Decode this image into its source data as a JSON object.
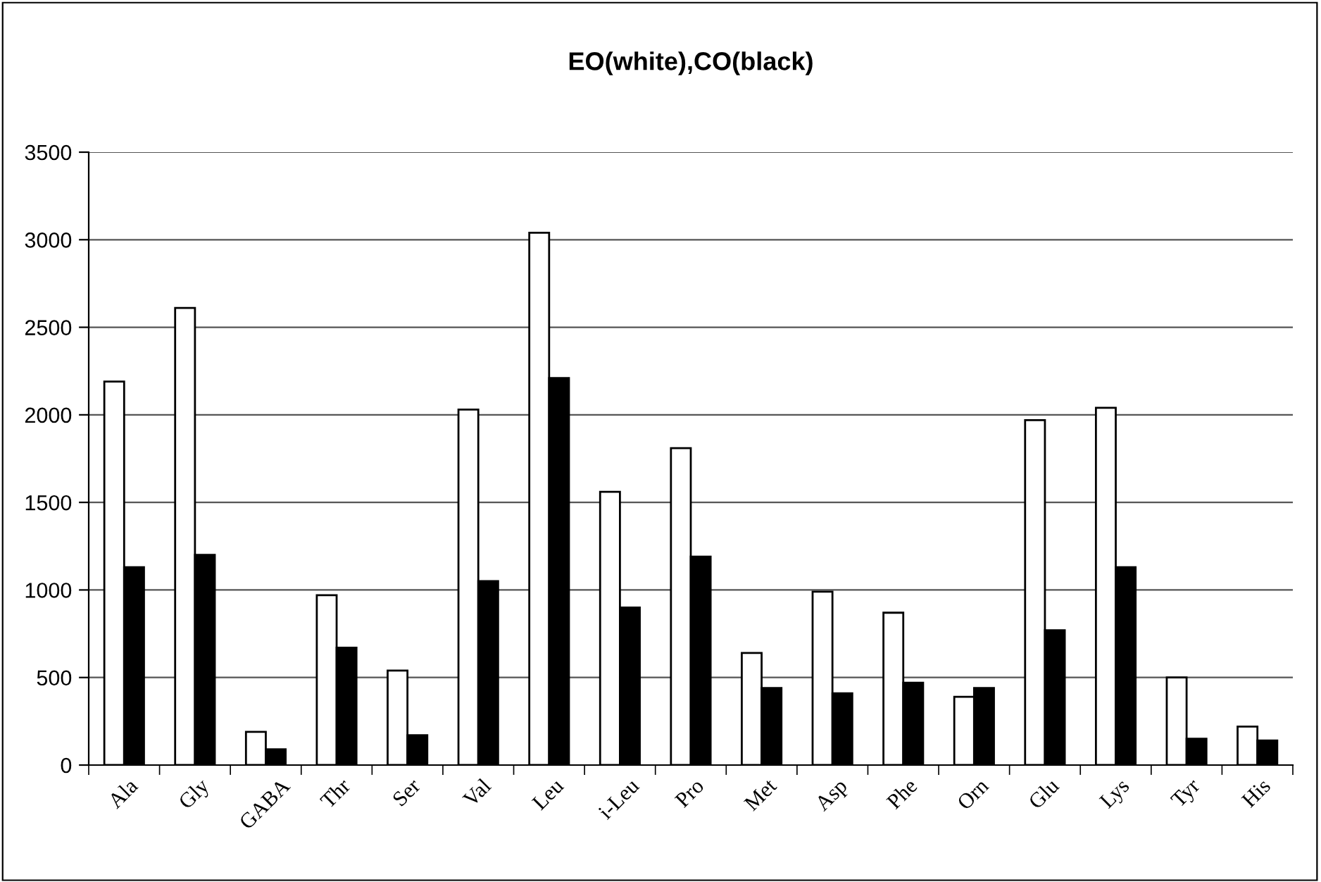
{
  "chart_data": {
    "type": "bar",
    "title": "EO(white),CO(black)",
    "categories": [
      "Ala",
      "Gly",
      "GABA",
      "Thr",
      "Ser",
      "Val",
      "Leu",
      "i-Leu",
      "Pro",
      "Met",
      "Asp",
      "Phe",
      "Orn",
      "Glu",
      "Lys",
      "Tyr",
      "His"
    ],
    "series": [
      {
        "color": "#ffffff",
        "values": [
          2190,
          2610,
          190,
          970,
          540,
          2030,
          3040,
          1560,
          1810,
          640,
          990,
          870,
          390,
          1970,
          2040,
          500,
          220
        ]
      },
      {
        "color": "#000000",
        "values": [
          1130,
          1200,
          90,
          670,
          170,
          1050,
          2210,
          900,
          1190,
          440,
          410,
          470,
          440,
          770,
          1130,
          150,
          140
        ]
      }
    ],
    "ylim": [
      0,
      3500
    ],
    "yticks": [
      0,
      500,
      1000,
      1500,
      2000,
      2500,
      3000,
      3500
    ],
    "grid": "y",
    "legend": false
  }
}
